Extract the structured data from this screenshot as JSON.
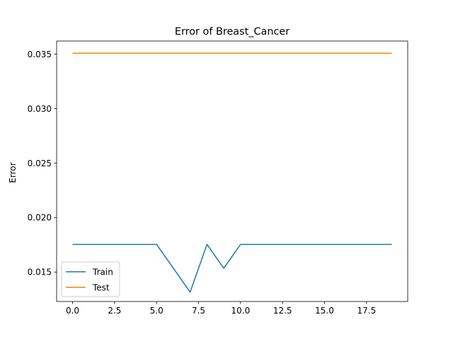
{
  "chart_data": {
    "type": "line",
    "title": "Error of Breast_Cancer",
    "xlabel": "",
    "ylabel": "Error",
    "xlim": [
      -0.95,
      19.95
    ],
    "ylim": [
      0.0123,
      0.0362
    ],
    "xticks": [
      0,
      2.5,
      5,
      7.5,
      10,
      12.5,
      15,
      17.5
    ],
    "xtick_labels": [
      "0.0",
      "2.5",
      "5.0",
      "7.5",
      "10.0",
      "12.5",
      "15.0",
      "17.5"
    ],
    "yticks": [
      0.015,
      0.02,
      0.025,
      0.03,
      0.035
    ],
    "ytick_labels": [
      "0.015",
      "0.020",
      "0.025",
      "0.030",
      "0.035"
    ],
    "grid": false,
    "legend_position": "lower-left",
    "x": [
      0,
      1,
      2,
      3,
      4,
      5,
      6,
      7,
      8,
      9,
      10,
      11,
      12,
      13,
      14,
      15,
      16,
      17,
      18,
      19
    ],
    "series": [
      {
        "name": "Train",
        "color": "#1f77b4",
        "values": [
          0.01754,
          0.01754,
          0.01754,
          0.01754,
          0.01754,
          0.01754,
          0.01535,
          0.01316,
          0.01754,
          0.01535,
          0.01754,
          0.01754,
          0.01754,
          0.01754,
          0.01754,
          0.01754,
          0.01754,
          0.01754,
          0.01754,
          0.01754
        ]
      },
      {
        "name": "Test",
        "color": "#ff7f0e",
        "values": [
          0.03509,
          0.03509,
          0.03509,
          0.03509,
          0.03509,
          0.03509,
          0.03509,
          0.03509,
          0.03509,
          0.03509,
          0.03509,
          0.03509,
          0.03509,
          0.03509,
          0.03509,
          0.03509,
          0.03509,
          0.03509,
          0.03509,
          0.03509
        ]
      }
    ]
  }
}
